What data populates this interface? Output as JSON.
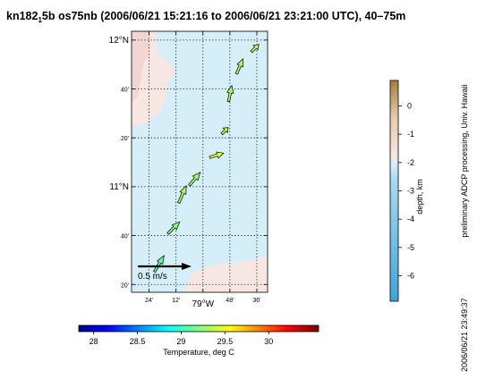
{
  "figure": {
    "title_pre": "kn182",
    "title_sub": "1",
    "title_post": "5b os75nb (2006/06/21 15:21:16 to 2006/06/21 23:21:00 UTC), 40–75m",
    "credit": "preliminary ADCP processing,  Univ. Hawaii",
    "timestamp": "2006/06/21 23:49:37"
  },
  "chart_data": [
    {
      "type": "vector-map",
      "map": {
        "lon_ticks": [
          {
            "value": -79.4,
            "label": "24'"
          },
          {
            "value": -79.2,
            "label": "12'"
          },
          {
            "value": -79.0,
            "label": "79°W"
          },
          {
            "value": -78.8,
            "label": "48'"
          },
          {
            "value": -78.6,
            "label": "36'"
          }
        ],
        "lat_ticks": [
          {
            "value": 10.3333,
            "label": "20'"
          },
          {
            "value": 10.6667,
            "label": "40'"
          },
          {
            "value": 11.0,
            "label": "11°N"
          },
          {
            "value": 11.3333,
            "label": "20'"
          },
          {
            "value": 11.6667,
            "label": "40'"
          },
          {
            "value": 12.0,
            "label": "12°N"
          }
        ],
        "lon_range": [
          -79.53,
          -78.52
        ],
        "lat_range": [
          10.28,
          12.06
        ],
        "grid": true,
        "scale_arrow": {
          "label": "0.5 m/s",
          "speed": 0.5
        },
        "vectors": [
          {
            "lon": -79.36,
            "lat": 10.42,
            "u": 0.09,
            "v": 0.15,
            "temp": 29.1
          },
          {
            "lon": -79.26,
            "lat": 10.68,
            "u": 0.11,
            "v": 0.11,
            "temp": 29.2
          },
          {
            "lon": -79.18,
            "lat": 10.89,
            "u": 0.07,
            "v": 0.16,
            "temp": 29.3
          },
          {
            "lon": -79.1,
            "lat": 11.01,
            "u": 0.1,
            "v": 0.12,
            "temp": 29.3
          },
          {
            "lon": -78.95,
            "lat": 11.2,
            "u": 0.13,
            "v": 0.04,
            "temp": 29.5
          },
          {
            "lon": -78.86,
            "lat": 11.36,
            "u": 0.06,
            "v": 0.06,
            "temp": 29.4
          },
          {
            "lon": -78.81,
            "lat": 11.58,
            "u": 0.03,
            "v": 0.15,
            "temp": 29.3
          },
          {
            "lon": -78.75,
            "lat": 11.77,
            "u": 0.06,
            "v": 0.14,
            "temp": 29.3
          },
          {
            "lon": -78.64,
            "lat": 11.92,
            "u": 0.07,
            "v": 0.07,
            "temp": 29.4
          }
        ]
      },
      "depth_colorbar": {
        "label": "depth, km",
        "ticks": [
          0,
          -1,
          -2,
          -3,
          -4,
          -5,
          -6
        ],
        "range": [
          -6.9,
          0.9
        ],
        "colors": {
          "deep": "#3ba6dc",
          "mid": "#d2ecf7",
          "shore": "#f8e4df",
          "land": "#a67c3a"
        }
      },
      "temp_colorbar": {
        "label": "Temperature, deg C",
        "ticks": [
          "28",
          "28.5",
          "29",
          "29.5",
          "30"
        ],
        "tick_values": [
          28,
          28.5,
          29,
          29.5,
          30
        ],
        "range": [
          27.83,
          30.57
        ]
      }
    }
  ]
}
